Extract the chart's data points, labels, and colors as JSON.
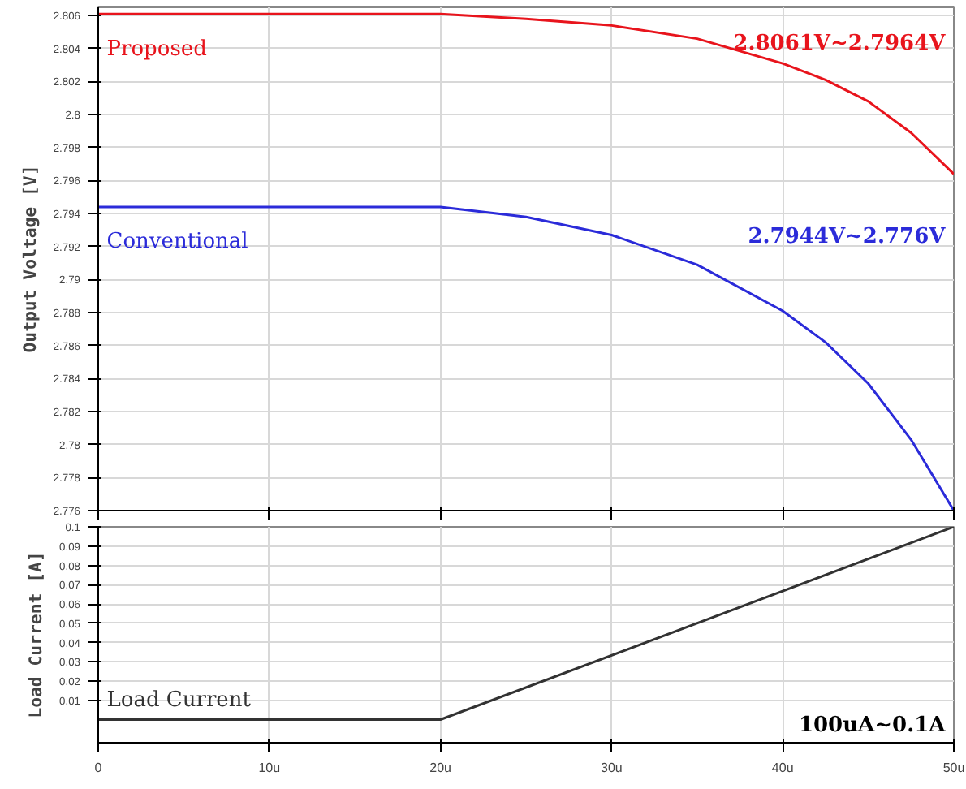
{
  "chart_data": [
    {
      "type": "line",
      "ylabel": "Output Voltage [V]",
      "x": [
        0,
        20,
        25,
        30,
        35,
        40,
        42.5,
        45,
        47.5,
        50
      ],
      "series": [
        {
          "name": "Proposed",
          "color": "#e8141c",
          "values": [
            2.8061,
            2.8061,
            2.8058,
            2.8054,
            2.8046,
            2.8031,
            2.8021,
            2.8008,
            2.7989,
            2.7964
          ]
        },
        {
          "name": "Conventional",
          "color": "#2b2bd9",
          "values": [
            2.7944,
            2.7944,
            2.7938,
            2.7927,
            2.7909,
            2.7881,
            2.7862,
            2.7837,
            2.7803,
            2.776
          ]
        }
      ],
      "annotations": [
        "2.8061V~2.7964V",
        "2.7944V~2.776V"
      ],
      "xlim": [
        0,
        50
      ],
      "xticks": [
        0,
        10,
        20,
        30,
        40,
        50
      ],
      "ylim": [
        2.776,
        2.8065
      ],
      "yticks": [
        2.776,
        2.778,
        2.78,
        2.782,
        2.784,
        2.786,
        2.788,
        2.79,
        2.792,
        2.794,
        2.796,
        2.798,
        2.8,
        2.802,
        2.804,
        2.806
      ],
      "grid": true,
      "tick_labels": "y"
    },
    {
      "type": "line",
      "ylabel": "Load Current [A]",
      "x": [
        0,
        20,
        50
      ],
      "series": [
        {
          "name": "Load Current",
          "color": "#333333",
          "values": [
            0,
            0,
            0.1
          ]
        }
      ],
      "annotations": [
        "100uA~0.1A"
      ],
      "xlim": [
        0,
        50
      ],
      "xticks": [
        {
          "value": 0,
          "label": "0"
        },
        {
          "value": 10,
          "label": "10u"
        },
        {
          "value": 20,
          "label": "20u"
        },
        {
          "value": 30,
          "label": "30u"
        },
        {
          "value": 40,
          "label": "40u"
        },
        {
          "value": 50,
          "label": "50u"
        }
      ],
      "ylim": [
        -0.012,
        0.1
      ],
      "yticks": [
        0.01,
        0.02,
        0.03,
        0.04,
        0.05,
        0.06,
        0.07,
        0.08,
        0.09,
        0.1
      ],
      "grid": true
    }
  ]
}
